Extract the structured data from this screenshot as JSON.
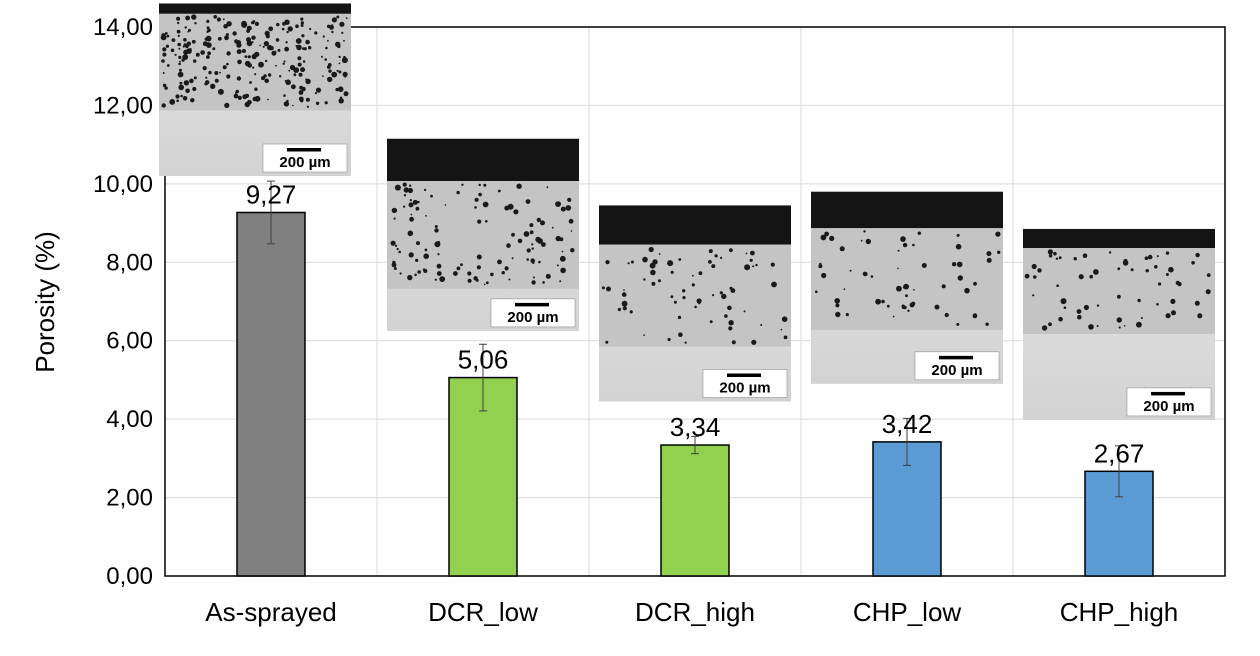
{
  "chart_data": {
    "type": "bar",
    "categories": [
      "As-sprayed",
      "DCR_low",
      "DCR_high",
      "CHP_low",
      "CHP_high"
    ],
    "values": [
      9.27,
      5.06,
      3.34,
      3.42,
      2.67
    ],
    "value_labels": [
      "9,27",
      "5,06",
      "3,34",
      "3,42",
      "2,67"
    ],
    "error": [
      0.8,
      0.85,
      0.22,
      0.6,
      0.65
    ],
    "bar_colors": [
      "#808080",
      "#92d050",
      "#92d050",
      "#5b9bd5",
      "#5b9bd5"
    ],
    "ylabel": "Porosity (%)",
    "ylim": [
      0,
      14
    ],
    "yticks": [
      0,
      2,
      4,
      6,
      8,
      10,
      12,
      14
    ],
    "ytick_labels": [
      "0,00",
      "2,00",
      "4,00",
      "6,00",
      "8,00",
      "10,00",
      "12,00",
      "14,00"
    ],
    "grid": true,
    "inset_images": [
      {
        "scale_bar_label": "200 µm"
      },
      {
        "scale_bar_label": "200 µm"
      },
      {
        "scale_bar_label": "200 µm"
      },
      {
        "scale_bar_label": "200 µm"
      },
      {
        "scale_bar_label": "200 µm"
      }
    ]
  }
}
